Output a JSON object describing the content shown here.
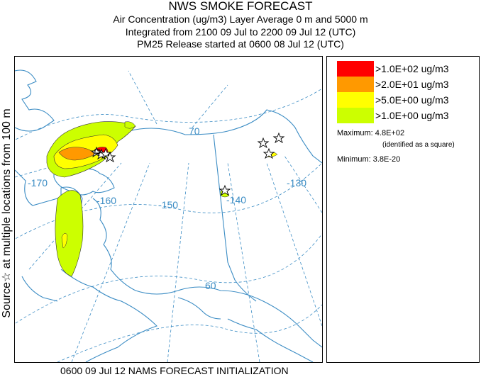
{
  "title": "NWS SMOKE FORECAST",
  "subtitle_lines": [
    "Air Concentration (ug/m3) Layer Average    0 m and  5000 m",
    "Integrated from 2100 09 Jul to 2200 09 Jul 12 (UTC)",
    "PM25 Release started at 0600 08 Jul 12 (UTC)"
  ],
  "side_label": "Source☆ at multiple locations  from  100 m",
  "bottom_label": "0600 09 Jul 12 NAMS FORECAST INITIALIZATION",
  "map": {
    "lon_labels": [
      "-170",
      "-160",
      "-150",
      "-140",
      "-130"
    ],
    "lat_labels": [
      "70",
      "60"
    ],
    "colors": {
      "graticule": "#3b8cc4",
      "coast": "#3b8cc4"
    }
  },
  "legend": {
    "items": [
      {
        "label": ">1.0E+02 ug/m3",
        "color": "#ff0000"
      },
      {
        "label": ">2.0E+01 ug/m3",
        "color": "#ff9900"
      },
      {
        "label": ">5.0E+00 ug/m3",
        "color": "#ffff00"
      },
      {
        "label": ">1.0E+00 ug/m3",
        "color": "#ccff00"
      }
    ],
    "maximum": "Maximum: 4.8E+02",
    "maximum_note": "(identified as a square)",
    "minimum": "Minimum: 3.8E-20"
  }
}
